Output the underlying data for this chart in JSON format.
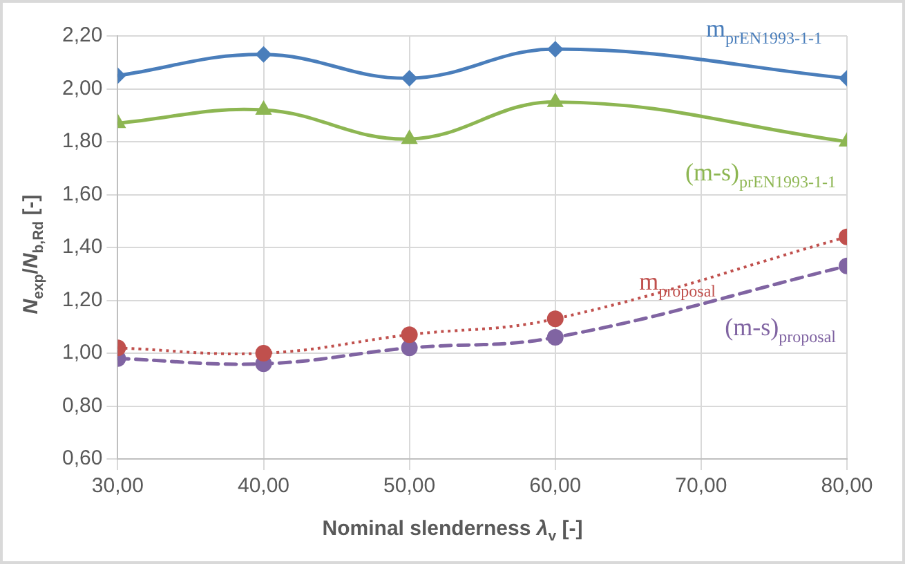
{
  "chart_data": {
    "type": "line",
    "xlabel": "Nominal slenderness λ$_{v}$ [-]",
    "ylabel": "N$_{exp}$/N$_{b,Rd}$ [-]",
    "x": [
      30,
      40,
      50,
      60,
      80
    ],
    "series": [
      {
        "name": "m$_{prEN1993-1-1}$",
        "color": "#4a7ebb",
        "values": [
          2.05,
          2.13,
          2.04,
          2.15,
          2.04
        ],
        "marker": "diamond",
        "line_style": "solid"
      },
      {
        "name": "(m-s)$_{prEN1993-1-1}$",
        "color": "#8db652",
        "values": [
          1.87,
          1.92,
          1.81,
          1.95,
          1.8
        ],
        "marker": "triangle",
        "line_style": "solid"
      },
      {
        "name": "m$_{proposal}$",
        "color": "#c0504d",
        "values": [
          1.02,
          1.0,
          1.07,
          1.13,
          1.44
        ],
        "marker": "circle",
        "line_style": "dotted"
      },
      {
        "name": "(m-s)$_{proposal}$",
        "color": "#8064a2",
        "values": [
          0.98,
          0.96,
          1.02,
          1.06,
          1.33
        ],
        "marker": "circle",
        "line_style": "dashed"
      }
    ],
    "xlim": [
      30,
      80
    ],
    "xticks": [
      {
        "value": 30,
        "label": "30,00"
      },
      {
        "value": 40,
        "label": "40,00"
      },
      {
        "value": 50,
        "label": "50,00"
      },
      {
        "value": 60,
        "label": "60,00"
      },
      {
        "value": 70,
        "label": "70,00"
      },
      {
        "value": 80,
        "label": "80,00"
      }
    ],
    "ylim": [
      0.6,
      2.2
    ],
    "yticks": [
      {
        "value": 0.6,
        "label": "0,60"
      },
      {
        "value": 0.8,
        "label": "0,80"
      },
      {
        "value": 1.0,
        "label": "1,00"
      },
      {
        "value": 1.2,
        "label": "1,20"
      },
      {
        "value": 1.4,
        "label": "1,40"
      },
      {
        "value": 1.6,
        "label": "1,60"
      },
      {
        "value": 1.8,
        "label": "1,80"
      },
      {
        "value": 2.0,
        "label": "2,00"
      },
      {
        "value": 2.2,
        "label": "2,20"
      }
    ],
    "grid": true,
    "legend": false
  }
}
